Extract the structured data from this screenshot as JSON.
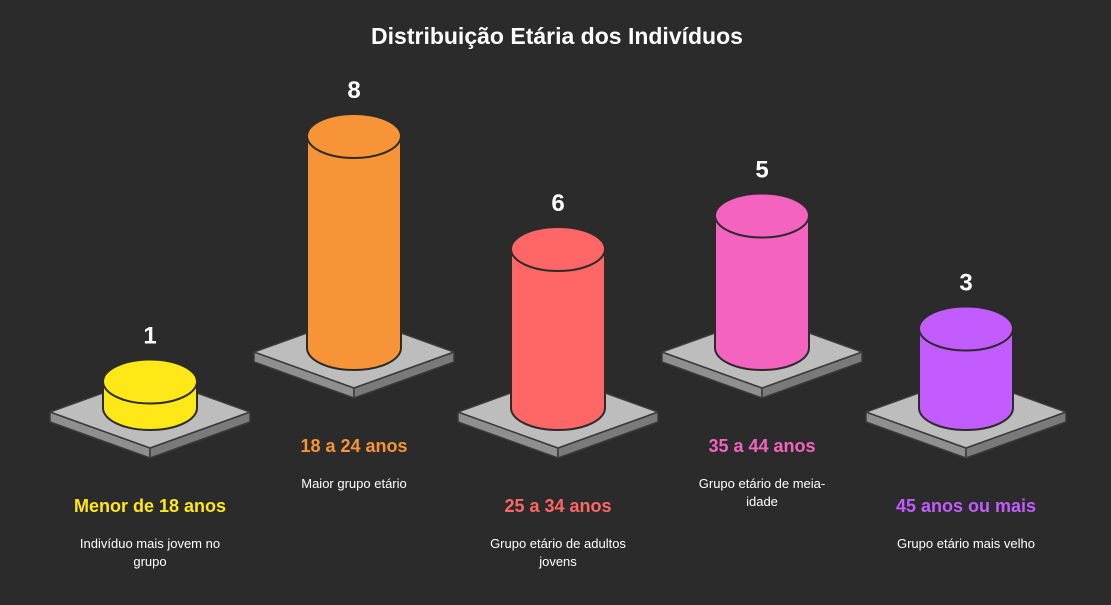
{
  "chart_data": {
    "type": "bar",
    "title": "Distribuição Etária dos Indivíduos",
    "categories": [
      "Menor de 18 anos",
      "18 a 24 anos",
      "25 a 34 anos",
      "35 a 44 anos",
      "45 anos ou mais"
    ],
    "values": [
      1,
      8,
      6,
      5,
      3
    ],
    "descriptions": [
      [
        "Indivíduo mais jovem no",
        "grupo"
      ],
      [
        "Maior grupo etário"
      ],
      [
        "Grupo etário de adultos",
        "jovens"
      ],
      [
        "Grupo etário de meia-",
        "idade"
      ],
      [
        "Grupo etário mais velho"
      ]
    ],
    "colors": [
      "#ffe817",
      "#f79437",
      "#ff6666",
      "#f463bf",
      "#c35cff"
    ],
    "label_colors": [
      "#ffe817",
      "#f79437",
      "#ff6666",
      "#f463bf",
      "#c35cff"
    ],
    "legend": "none",
    "grid": false
  }
}
